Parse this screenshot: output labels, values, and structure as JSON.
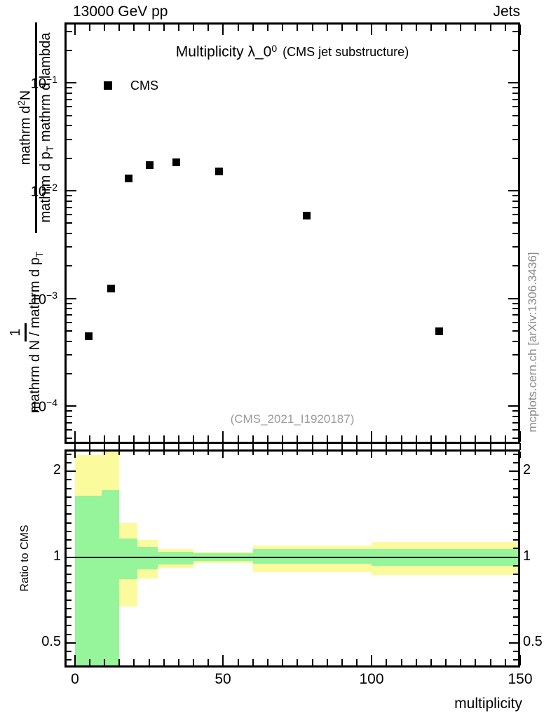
{
  "header": {
    "left": "13000 GeV pp",
    "right": "Jets"
  },
  "title": {
    "main": "Multiplicity λ_0",
    "sup": "0",
    "paren": "(CMS jet substructure)"
  },
  "legend": {
    "label": "CMS",
    "marker": "filled-square"
  },
  "watermark": "(CMS_2021_I1920187)",
  "side_note": "mcplots.cern.ch [arXiv:1306.3436]",
  "ylabel": {
    "frac_top": {
      "num_pre": "mathrm d",
      "num_sup": "2",
      "num_post": "N",
      "den_pre": "mathrm d p",
      "den_sub": "T",
      "den_post": " mathrm d lambda"
    },
    "frac_bottom": {
      "num": "1",
      "den_pre": "mathrm d N / mathrm d p",
      "den_sub": "T"
    }
  },
  "ratio_axis": {
    "ylabel": "Ratio to CMS",
    "xlabel": "multiplicity"
  },
  "colors": {
    "band_outer": "#fbfb9e",
    "band_inner": "#96f49b",
    "marker": "#000000",
    "watermark_gray": "#9b9b9b",
    "side_gray": "#8a8a8a"
  },
  "chart_data": {
    "type": "scatter",
    "title": "Multiplicity λ_0^0 (CMS jet substructure)",
    "xlabel": "multiplicity",
    "ylabel": "1/(mathrm d N / mathrm d p_T) · mathrm d^2 N/(mathrm d p_T mathrm d lambda)",
    "x_scale": "linear",
    "y_scale": "log",
    "xlim": [
      -3.47,
      150
    ],
    "main_ylim": [
      4.66e-05,
      0.3485
    ],
    "ratio_ylim": [
      0.42,
      2.35
    ],
    "grid": false,
    "legend_position": "top-left-inside",
    "x_ticks": [
      {
        "label": "0",
        "v": 0
      },
      {
        "label": "50",
        "v": 50
      },
      {
        "label": "100",
        "v": 100
      },
      {
        "label": "150",
        "v": 150
      }
    ],
    "x_minor_step": 5,
    "main_y_ticks": [
      {
        "base": "10",
        "exp": "−1",
        "v": 0.1
      },
      {
        "base": "10",
        "exp": "−2",
        "v": 0.01
      },
      {
        "base": "10",
        "exp": "−3",
        "v": 0.001
      },
      {
        "base": "10",
        "exp": "−4",
        "v": 0.0001
      }
    ],
    "ratio_y_ticks": [
      {
        "label": "2",
        "v": 2
      },
      {
        "label": "1",
        "v": 1
      },
      {
        "label": "0.5",
        "v": 0.5
      }
    ],
    "series": [
      {
        "name": "CMS",
        "marker": "filled-square",
        "color": "#000000",
        "x": [
          4.5,
          12,
          18,
          25,
          34,
          48.5,
          78,
          122.5
        ],
        "y": [
          0.00045,
          0.00124,
          0.0131,
          0.0174,
          0.0185,
          0.0152,
          0.00595,
          0.0005
        ]
      }
    ],
    "ratio_reference": 1,
    "ratio_bands": [
      {
        "x0": 0,
        "x1": 9,
        "outer": [
          0.4,
          2.28
        ],
        "inner": [
          0.4,
          1.64
        ]
      },
      {
        "x0": 9,
        "x1": 15,
        "outer": [
          0.4,
          2.4
        ],
        "inner": [
          0.4,
          1.72
        ]
      },
      {
        "x0": 15,
        "x1": 21,
        "outer": [
          0.67,
          1.32
        ],
        "inner": [
          0.835,
          1.16
        ]
      },
      {
        "x0": 21,
        "x1": 28,
        "outer": [
          0.84,
          1.15
        ],
        "inner": [
          0.905,
          1.085
        ]
      },
      {
        "x0": 28,
        "x1": 40,
        "outer": [
          0.915,
          1.07
        ],
        "inner": [
          0.94,
          1.045
        ]
      },
      {
        "x0": 40,
        "x1": 60,
        "outer": [
          0.955,
          1.045
        ],
        "inner": [
          0.97,
          1.03
        ]
      },
      {
        "x0": 60,
        "x1": 100,
        "outer": [
          0.885,
          1.1
        ],
        "inner": [
          0.95,
          1.07
        ]
      },
      {
        "x0": 100,
        "x1": 150,
        "outer": [
          0.865,
          1.13
        ],
        "inner": [
          0.933,
          1.065
        ]
      }
    ]
  }
}
